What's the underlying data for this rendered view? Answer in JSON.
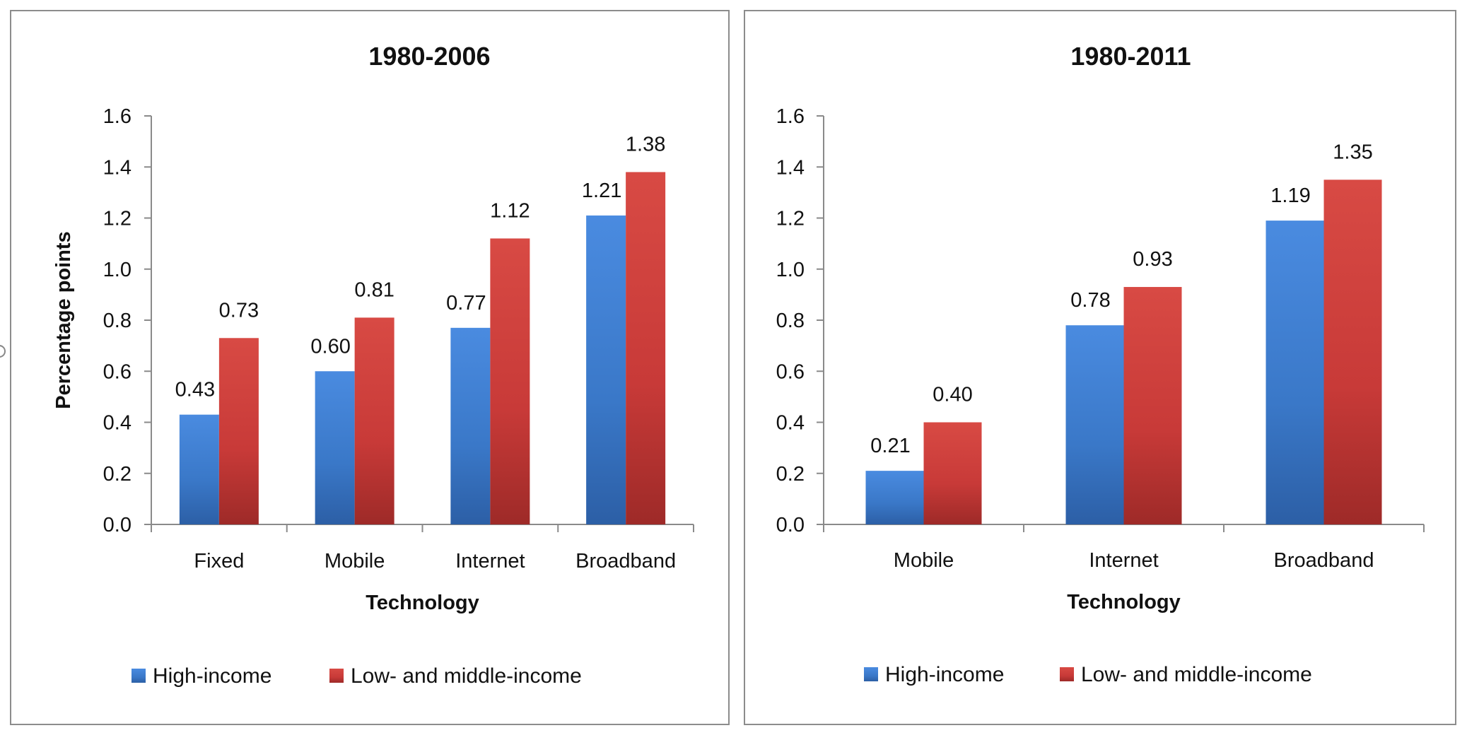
{
  "chart_data": [
    {
      "type": "bar",
      "title": "1980-2006",
      "xlabel": "Technology",
      "ylabel": "Percentage points",
      "categories": [
        "Fixed",
        "Mobile",
        "Internet",
        "Broadband"
      ],
      "series": [
        {
          "name": "High-income",
          "values": [
            0.43,
            0.6,
            0.77,
            1.21
          ],
          "labels": [
            "0.43",
            "0.60",
            "0.77",
            "1.21"
          ],
          "color": "#3a78c8"
        },
        {
          "name": "Low- and middle-income",
          "values": [
            0.73,
            0.81,
            1.12,
            1.38
          ],
          "labels": [
            "0.73",
            "0.81",
            "1.12",
            "1.38"
          ],
          "color": "#c83a38"
        }
      ],
      "ylim": [
        0,
        1.6
      ],
      "yticks": [
        "0.0",
        "0.2",
        "0.4",
        "0.6",
        "0.8",
        "1.0",
        "1.2",
        "1.4",
        "1.6"
      ],
      "grid": false,
      "legend": "bottom"
    },
    {
      "type": "bar",
      "title": "1980-2011",
      "xlabel": "Technology",
      "ylabel": "",
      "categories": [
        "Mobile",
        "Internet",
        "Broadband"
      ],
      "series": [
        {
          "name": "High-income",
          "values": [
            0.21,
            0.78,
            1.19
          ],
          "labels": [
            "0.21",
            "0.78",
            "1.19"
          ],
          "color": "#3a78c8"
        },
        {
          "name": "Low- and middle-income",
          "values": [
            0.4,
            0.93,
            1.35
          ],
          "labels": [
            "0.40",
            "0.93",
            "1.35"
          ],
          "color": "#c83a38"
        }
      ],
      "ylim": [
        0,
        1.6
      ],
      "yticks": [
        "0.0",
        "0.2",
        "0.4",
        "0.6",
        "0.8",
        "1.0",
        "1.2",
        "1.4",
        "1.6"
      ],
      "grid": false,
      "legend": "bottom"
    }
  ]
}
